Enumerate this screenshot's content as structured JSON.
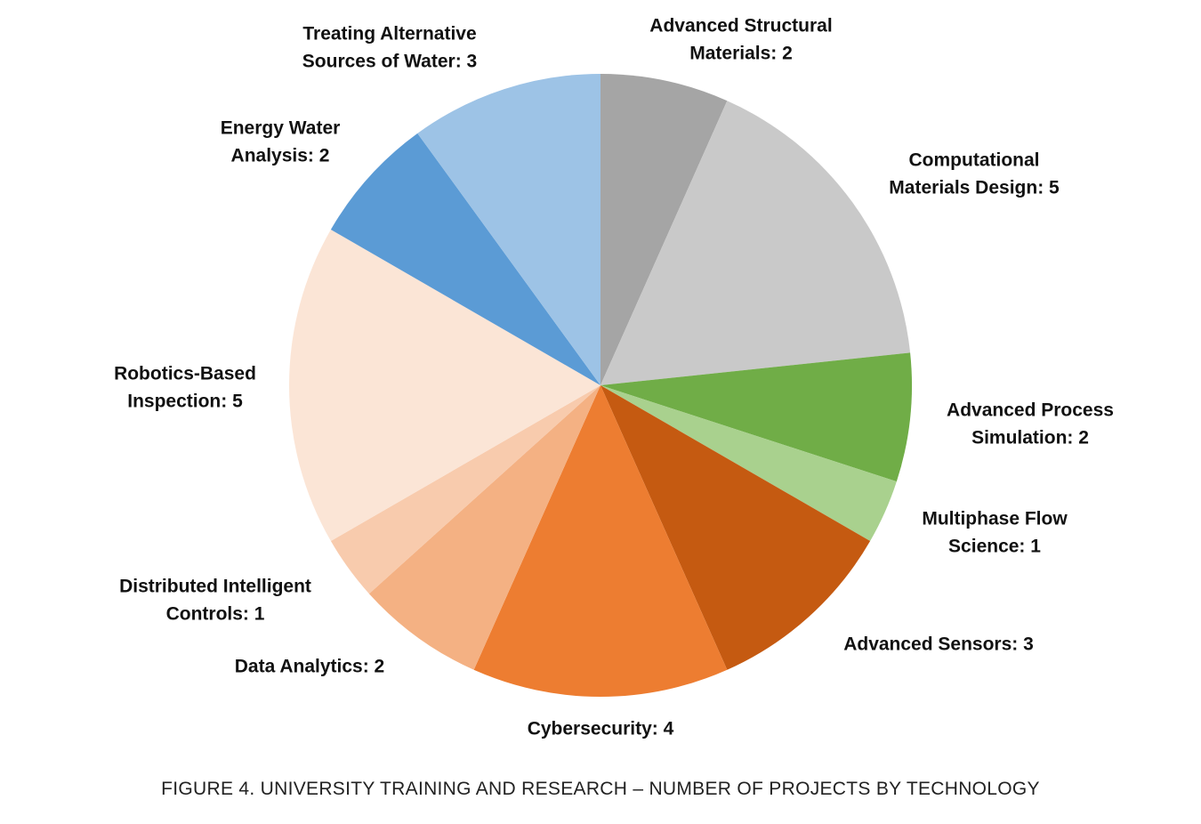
{
  "chart_data": {
    "type": "pie",
    "labels": [
      [
        "Advanced Structural",
        "Materials: 2"
      ],
      [
        "Computational",
        "Materials Design: 5"
      ],
      [
        "Advanced Process",
        "Simulation: 2"
      ],
      [
        "Multiphase Flow",
        "Science: 1"
      ],
      [
        "Advanced Sensors: 3"
      ],
      [
        "Cybersecurity: 4"
      ],
      [
        "Data Analytics: 2"
      ],
      [
        "Distributed Intelligent",
        "Controls: 1"
      ],
      [
        "Robotics-Based",
        "Inspection: 5"
      ],
      [
        "Energy Water",
        "Analysis: 2"
      ],
      [
        "Treating Alternative",
        "Sources of Water: 3"
      ]
    ],
    "values": [
      2,
      5,
      2,
      1,
      3,
      4,
      2,
      1,
      5,
      2,
      3
    ],
    "colors": [
      "#a5a5a5",
      "#c9c9c9",
      "#70ad47",
      "#a9d18e",
      "#c55a11",
      "#ed7d31",
      "#f4b183",
      "#f8cbad",
      "#fbe5d6",
      "#5b9bd5",
      "#9dc3e6"
    ],
    "caption": "FIGURE 4. UNIVERSITY TRAINING AND RESEARCH – NUMBER OF PROJECTS BY TECHNOLOGY"
  }
}
